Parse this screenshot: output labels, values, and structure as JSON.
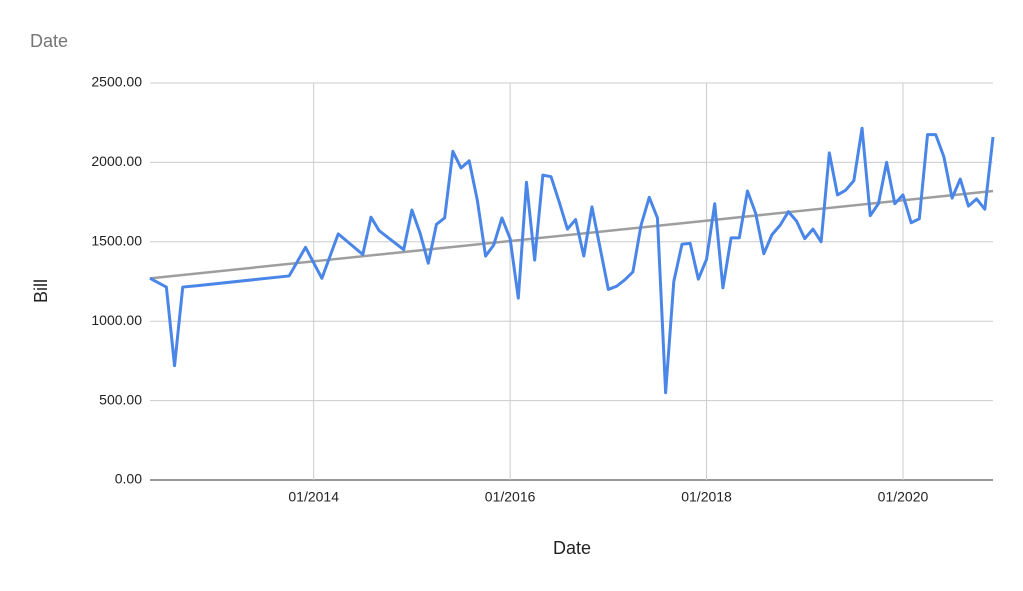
{
  "chart_data": {
    "type": "line",
    "title": "Date",
    "x_label": "Date",
    "y_label": "Bill",
    "x": [
      "05/2012",
      "07/2012",
      "08/2012",
      "09/2012",
      "11/2012",
      "10/2013",
      "12/2013",
      "02/2014",
      "04/2014",
      "07/2014",
      "08/2014",
      "09/2014",
      "12/2014",
      "01/2015",
      "02/2015",
      "03/2015",
      "04/2015",
      "05/2015",
      "06/2015",
      "07/2015",
      "08/2015",
      "09/2015",
      "10/2015",
      "11/2015",
      "12/2015",
      "01/2016",
      "02/2016",
      "03/2016",
      "04/2016",
      "05/2016",
      "06/2016",
      "07/2016",
      "08/2016",
      "09/2016",
      "10/2016",
      "11/2016",
      "12/2016",
      "01/2017",
      "02/2017",
      "03/2017",
      "04/2017",
      "05/2017",
      "06/2017",
      "07/2017",
      "08/2017",
      "09/2017",
      "10/2017",
      "11/2017",
      "12/2017",
      "01/2018",
      "02/2018",
      "03/2018",
      "04/2018",
      "05/2018",
      "06/2018",
      "07/2018",
      "08/2018",
      "09/2018",
      "10/2018",
      "11/2018",
      "12/2018",
      "01/2019",
      "02/2019",
      "03/2019",
      "04/2019",
      "05/2019",
      "06/2019",
      "07/2019",
      "08/2019",
      "09/2019",
      "10/2019",
      "11/2019",
      "12/2019",
      "01/2020",
      "02/2020",
      "03/2020",
      "04/2020",
      "05/2020",
      "06/2020",
      "07/2020",
      "08/2020",
      "09/2020",
      "10/2020",
      "11/2020",
      "12/2020"
    ],
    "values": [
      1270,
      1215,
      720,
      1215,
      1225,
      1285,
      1465,
      1270,
      1550,
      1420,
      1655,
      1570,
      1450,
      1700,
      1555,
      1365,
      1610,
      1650,
      2070,
      1965,
      2010,
      1760,
      1410,
      1480,
      1650,
      1520,
      1145,
      1875,
      1385,
      1920,
      1910,
      1750,
      1580,
      1640,
      1410,
      1720,
      1460,
      1200,
      1220,
      1260,
      1310,
      1605,
      1780,
      1650,
      550,
      1250,
      1485,
      1490,
      1265,
      1390,
      1740,
      1210,
      1525,
      1525,
      1820,
      1680,
      1425,
      1545,
      1605,
      1690,
      1630,
      1520,
      1580,
      1500,
      2060,
      1795,
      1825,
      1885,
      2215,
      1665,
      1740,
      2000,
      1740,
      1795,
      1620,
      1645,
      2175,
      2175,
      2035,
      1775,
      1895,
      1725,
      1770,
      1705,
      2160
    ],
    "color": "#4a86e8",
    "trendline": {
      "values": [
        1270,
        1820
      ],
      "color": "#9e9e9e"
    },
    "xlim": [
      "05/2012",
      "12/2020"
    ],
    "xticks": [
      "01/2014",
      "01/2016",
      "01/2018",
      "01/2020"
    ],
    "ylim": [
      0,
      2500
    ],
    "yticks": [
      {
        "value": 0,
        "label": "0.00"
      },
      {
        "value": 500,
        "label": "500.00"
      },
      {
        "value": 1000,
        "label": "1000.00"
      },
      {
        "value": 1500,
        "label": "1500.00"
      },
      {
        "value": 2000,
        "label": "2000.00"
      },
      {
        "value": 2500,
        "label": "2500.00"
      }
    ],
    "grid": true
  }
}
